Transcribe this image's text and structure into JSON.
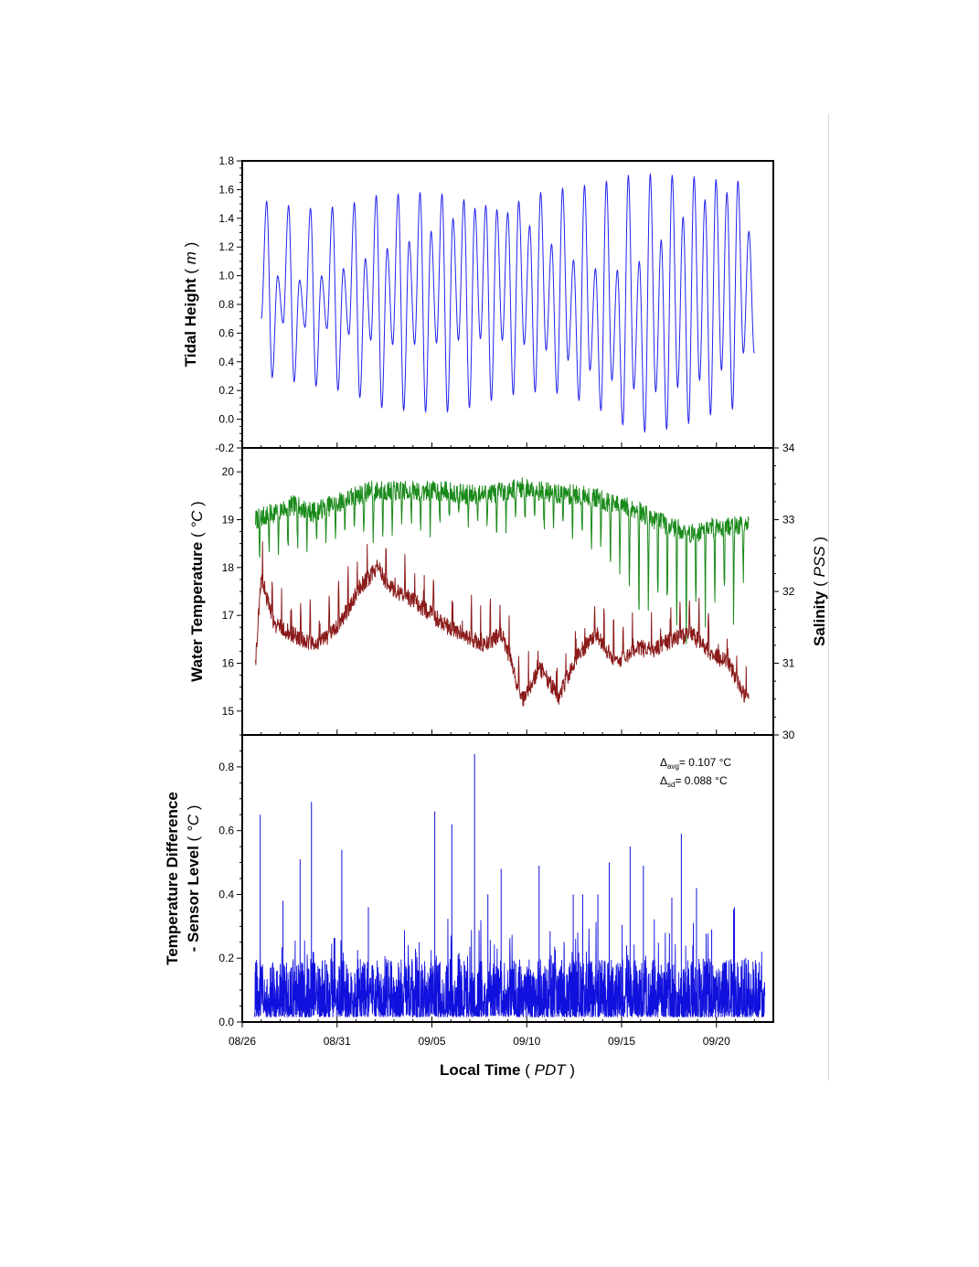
{
  "figure": {
    "x_axis": {
      "title": "Local Time",
      "unit": "PDT",
      "tick_labels": [
        "08/26",
        "08/31",
        "09/05",
        "09/10",
        "09/15",
        "09/20"
      ]
    }
  },
  "colors": {
    "tide": "#2222ee",
    "salinity": "#1a8a1a",
    "water_temp": "#8b1a1a",
    "temp_diff": "#1111dd",
    "frame": "#000000"
  },
  "annotation": {
    "avg_symbol": "Δ",
    "avg_sub": "avg",
    "avg_value": "= 0.107 °C",
    "sd_symbol": "Δ",
    "sd_sub": "sd",
    "sd_value": "= 0.088 °C"
  },
  "chart_data": [
    {
      "type": "line",
      "ylabel": "Tidal Height",
      "yunit": "m",
      "ylim": [
        -0.2,
        1.8
      ],
      "ytick_labels": [
        "-0.2",
        "0.0",
        "0.2",
        "0.4",
        "0.6",
        "0.8",
        "1.0",
        "1.2",
        "1.4",
        "1.6",
        "1.8"
      ],
      "xlim": [
        "2008-08-26",
        "2008-09-23"
      ],
      "x_start": "2008-08-27",
      "x_end": "2008-09-22",
      "series": [
        {
          "highs": [
            1.52,
            1.0,
            1.49,
            0.97,
            1.47,
            1.0,
            1.48,
            1.05,
            1.51,
            1.12,
            1.56,
            1.19,
            1.57,
            1.24,
            1.58,
            1.31,
            1.57,
            1.4,
            1.53,
            1.47,
            1.49,
            1.46,
            1.44,
            1.52,
            1.35,
            1.58,
            1.22,
            1.61,
            1.11,
            1.63,
            1.05,
            1.66,
            1.04,
            1.7,
            1.1,
            1.71,
            1.25,
            1.7,
            1.41,
            1.69,
            1.53,
            1.67,
            1.58,
            1.66,
            1.31
          ],
          "lows": [
            0.7,
            0.29,
            0.67,
            0.26,
            0.64,
            0.23,
            0.63,
            0.2,
            0.59,
            0.15,
            0.55,
            0.08,
            0.52,
            0.06,
            0.52,
            0.05,
            0.53,
            0.05,
            0.55,
            0.08,
            0.56,
            0.13,
            0.55,
            0.17,
            0.52,
            0.19,
            0.48,
            0.18,
            0.41,
            0.13,
            0.34,
            0.06,
            0.27,
            -0.04,
            0.21,
            -0.09,
            0.19,
            -0.07,
            0.22,
            -0.03,
            0.27,
            0.03,
            0.34,
            0.07,
            0.46
          ]
        }
      ]
    },
    {
      "type": "line",
      "ylabel": "Water Temperature",
      "yunit": "°C",
      "ylim": [
        14.5,
        20.5
      ],
      "ytick_labels": [
        "15",
        "16",
        "17",
        "18",
        "19",
        "20"
      ],
      "y2label": "Salinity",
      "y2unit": "PSS",
      "y2lim": [
        30,
        34
      ],
      "y2tick_labels": [
        "30",
        "31",
        "32",
        "33",
        "34"
      ],
      "xlim": [
        "2008-08-26",
        "2008-09-23"
      ],
      "series": [
        {
          "axis": "right",
          "x_days": [
            0.0,
            1.0,
            2.0,
            3.0,
            4.0,
            5.0,
            6.0,
            7.0,
            8.0,
            9.0,
            10.0,
            11.0,
            12.0,
            13.0,
            14.0,
            15.0,
            16.0,
            17.0,
            18.0,
            19.0,
            20.0,
            21.0,
            22.0,
            23.0,
            24.0,
            25.0,
            25.5,
            26.0
          ],
          "baseline": [
            33.0,
            33.1,
            33.2,
            33.1,
            33.2,
            33.3,
            33.4,
            33.4,
            33.4,
            33.4,
            33.4,
            33.35,
            33.35,
            33.4,
            33.45,
            33.4,
            33.35,
            33.35,
            33.3,
            33.2,
            33.15,
            33.0,
            32.9,
            32.8,
            32.9,
            32.9,
            32.9,
            33.0
          ],
          "min_dips": [
            32.3,
            32.5,
            32.3,
            32.5,
            32.7,
            32.6,
            32.4,
            32.7,
            32.8,
            32.7,
            32.8,
            32.9,
            32.6,
            32.8,
            32.7,
            32.7,
            32.8,
            32.5,
            32.3,
            32.2,
            31.6,
            31.0,
            31.3,
            31.2,
            31.5,
            31.3,
            31.3,
            32.8
          ]
        },
        {
          "axis": "left",
          "x_days": [
            0.0,
            0.3,
            1.0,
            2.0,
            3.0,
            4.0,
            5.0,
            5.5,
            6.0,
            6.5,
            7.0,
            8.0,
            9.0,
            10.0,
            11.0,
            12.0,
            13.0,
            13.5,
            14.0,
            15.0,
            16.0,
            17.0,
            18.0,
            19.0,
            20.0,
            21.0,
            22.0,
            23.0,
            24.0,
            25.0,
            25.5,
            26.0
          ],
          "values": [
            16.0,
            17.8,
            16.8,
            16.6,
            16.4,
            16.6,
            17.2,
            17.6,
            17.8,
            18.0,
            17.6,
            17.4,
            17.1,
            16.8,
            16.6,
            16.4,
            16.6,
            16.0,
            15.2,
            15.9,
            15.3,
            16.2,
            16.6,
            16.0,
            16.3,
            16.3,
            16.5,
            16.6,
            16.2,
            16.0,
            15.5,
            15.2
          ]
        }
      ]
    },
    {
      "type": "line",
      "ylabel": "Temperature Difference",
      "ylabel2": "- Sensor Level",
      "yunit": "°C",
      "ylim": [
        0.0,
        0.9
      ],
      "ytick_labels": [
        "0.0",
        "0.2",
        "0.4",
        "0.6",
        "0.8"
      ],
      "xlim": [
        "2008-08-26",
        "2008-09-23"
      ],
      "x_end": "2008-09-22",
      "mean": 0.107,
      "sd": 0.088,
      "series": [
        {
          "spike_days": [
            0.3,
            2.4,
            3.0,
            4.6,
            9.5,
            11.6,
            13.0,
            15.0,
            18.7,
            19.8,
            22.0,
            22.5,
            24.1,
            25.3,
            10.4,
            12.3,
            16.8,
            17.3,
            18.1,
            20.5,
            23.3,
            1.5,
            6.0
          ],
          "spike_values": [
            0.65,
            0.51,
            0.69,
            0.54,
            0.66,
            0.84,
            0.48,
            0.49,
            0.5,
            0.55,
            0.39,
            0.59,
            0.29,
            0.36,
            0.62,
            0.4,
            0.4,
            0.4,
            0.4,
            0.49,
            0.42,
            0.38,
            0.36
          ]
        }
      ]
    }
  ]
}
